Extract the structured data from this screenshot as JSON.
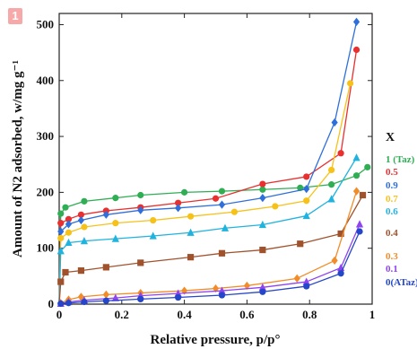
{
  "figure": {
    "badge": "1"
  },
  "chart_data": {
    "type": "scatter",
    "xlabel": "Relative pressure, p/p°",
    "ylabel": "Amount of N2 adsorbed, w/mg g⁻¹",
    "xlim": [
      0,
      1
    ],
    "ylim": [
      0,
      520
    ],
    "xticks": [
      "0",
      "0.2",
      "0.4",
      "0.6",
      "0.8",
      "1"
    ],
    "yticks": [
      "0",
      "100",
      "200",
      "300",
      "400",
      "500"
    ],
    "legend_title": "X",
    "legend_placement": "right",
    "grid": false,
    "series": [
      {
        "name": "1 (Taz)",
        "color": "#2fae54",
        "marker": "circle",
        "x": [
          0.005,
          0.02,
          0.08,
          0.18,
          0.26,
          0.4,
          0.52,
          0.65,
          0.77,
          0.87,
          0.95,
          0.985
        ],
        "y": [
          162,
          173,
          184,
          190,
          195,
          200,
          202,
          205,
          208,
          214,
          230,
          245
        ]
      },
      {
        "name": "0.5",
        "color": "#e83030",
        "marker": "circle",
        "x": [
          0.005,
          0.03,
          0.07,
          0.15,
          0.26,
          0.38,
          0.5,
          0.65,
          0.79,
          0.9,
          0.95
        ],
        "y": [
          145,
          152,
          160,
          167,
          173,
          181,
          189,
          215,
          228,
          270,
          455
        ]
      },
      {
        "name": "0.9",
        "color": "#2e6fdb",
        "marker": "diamond",
        "x": [
          0.005,
          0.03,
          0.07,
          0.15,
          0.26,
          0.38,
          0.52,
          0.65,
          0.79,
          0.88,
          0.95
        ],
        "y": [
          130,
          143,
          150,
          160,
          168,
          172,
          178,
          190,
          206,
          325,
          505
        ]
      },
      {
        "name": "0.7",
        "color": "#f6c21a",
        "marker": "circle",
        "x": [
          0.005,
          0.03,
          0.08,
          0.18,
          0.3,
          0.42,
          0.56,
          0.69,
          0.79,
          0.87,
          0.93
        ],
        "y": [
          118,
          128,
          138,
          145,
          150,
          157,
          165,
          175,
          185,
          240,
          395
        ]
      },
      {
        "name": "0.6",
        "color": "#1fb3de",
        "marker": "triangle",
        "x": [
          0.005,
          0.03,
          0.08,
          0.18,
          0.3,
          0.42,
          0.53,
          0.65,
          0.79,
          0.87,
          0.95
        ],
        "y": [
          95,
          110,
          113,
          117,
          122,
          128,
          136,
          142,
          158,
          188,
          262
        ]
      },
      {
        "name": "0.4",
        "color": "#a0522d",
        "marker": "square",
        "x": [
          0.005,
          0.02,
          0.07,
          0.15,
          0.26,
          0.42,
          0.52,
          0.65,
          0.77,
          0.9,
          0.97
        ],
        "y": [
          40,
          57,
          60,
          66,
          74,
          84,
          91,
          97,
          108,
          126,
          195
        ]
      },
      {
        "name": "0.3",
        "color": "#f28c28",
        "marker": "diamond",
        "x": [
          0.005,
          0.03,
          0.07,
          0.15,
          0.26,
          0.4,
          0.5,
          0.6,
          0.76,
          0.88,
          0.95
        ],
        "y": [
          2,
          8,
          13,
          17,
          20,
          24,
          28,
          33,
          46,
          78,
          202
        ]
      },
      {
        "name": "0.1",
        "color": "#8e44ef",
        "marker": "triangle",
        "x": [
          0.005,
          0.03,
          0.08,
          0.18,
          0.26,
          0.38,
          0.52,
          0.65,
          0.79,
          0.9,
          0.96
        ],
        "y": [
          1,
          4,
          7,
          11,
          15,
          19,
          24,
          30,
          40,
          65,
          143
        ]
      },
      {
        "name": "0(ATaz)",
        "color": "#2446c8",
        "marker": "circle",
        "x": [
          0.005,
          0.03,
          0.08,
          0.15,
          0.26,
          0.38,
          0.52,
          0.65,
          0.79,
          0.9,
          0.96
        ],
        "y": [
          1,
          2,
          4,
          6,
          9,
          12,
          16,
          22,
          32,
          55,
          130
        ]
      }
    ]
  }
}
